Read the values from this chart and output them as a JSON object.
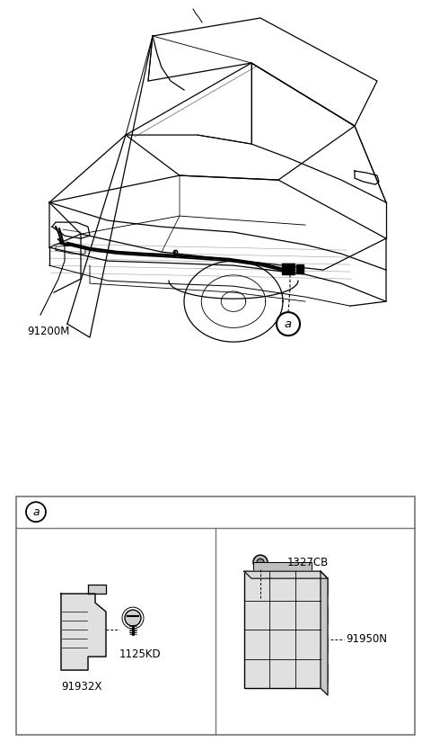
{
  "bg_color": "#ffffff",
  "lc": "#000000",
  "lc_gray": "#999999",
  "lc_light": "#bbbbbb",
  "part_91200M": "91200M",
  "part_a": "a",
  "part_91932X": "91932X",
  "part_1125KD": "1125KD",
  "part_1327CB": "1327CB",
  "part_91950N": "91950N",
  "box_color": "#555555",
  "font_size_label": 8.5
}
